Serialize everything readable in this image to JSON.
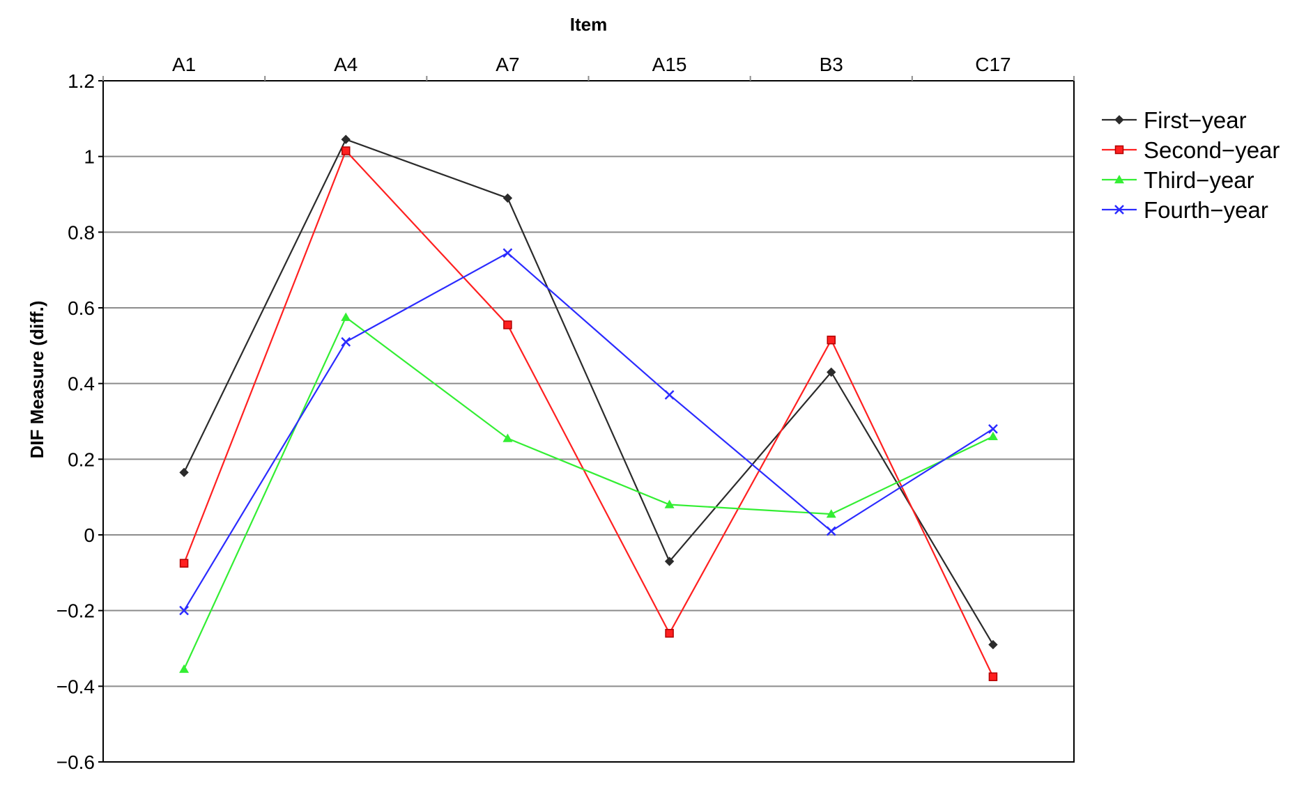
{
  "chart_data": {
    "type": "line",
    "xlabel": "Item",
    "ylabel": "DIF Measure (diff.)",
    "categories": [
      "A1",
      "A4",
      "A7",
      "A15",
      "B3",
      "C17"
    ],
    "ylim": [
      -0.6,
      1.2
    ],
    "yticks": [
      -0.6,
      -0.4,
      -0.2,
      0,
      0.2,
      0.4,
      0.6,
      0.8,
      1,
      1.2
    ],
    "ytick_labels": [
      "−0.6",
      "−0.4",
      "−0.2",
      "0",
      "0.2",
      "0.4",
      "0.6",
      "0.8",
      "1",
      "1.2"
    ],
    "x_axis_position": "top",
    "grid": "horizontal",
    "legend_position": "right",
    "series": [
      {
        "name": "First−year",
        "color": "#2b2b2b",
        "marker": "diamond",
        "values": [
          0.165,
          1.045,
          0.89,
          -0.07,
          0.43,
          -0.29
        ]
      },
      {
        "name": "Second−year",
        "color": "#ff2020",
        "marker": "square",
        "values": [
          -0.075,
          1.015,
          0.555,
          -0.26,
          0.515,
          -0.375
        ]
      },
      {
        "name": "Third−year",
        "color": "#33ee33",
        "marker": "triangle",
        "values": [
          -0.355,
          0.575,
          0.255,
          0.08,
          0.055,
          0.26
        ]
      },
      {
        "name": "Fourth−year",
        "color": "#2b2bff",
        "marker": "x",
        "values": [
          -0.2,
          0.51,
          0.745,
          0.37,
          0.01,
          0.28
        ]
      }
    ]
  }
}
